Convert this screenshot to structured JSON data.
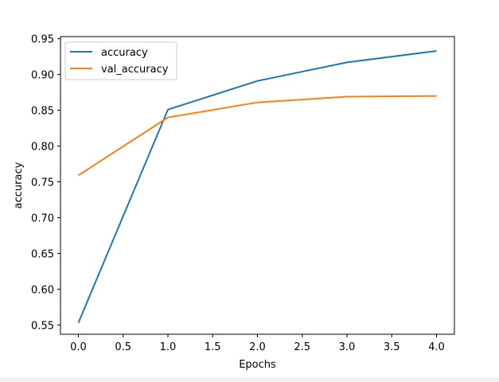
{
  "chart_data": {
    "type": "line",
    "xlabel": "Epochs",
    "ylabel": "accuracy",
    "xlim": [
      -0.2,
      4.2
    ],
    "ylim": [
      0.537,
      0.953
    ],
    "xticks": [
      "0.0",
      "0.5",
      "1.0",
      "1.5",
      "2.0",
      "2.5",
      "3.0",
      "3.5",
      "4.0"
    ],
    "yticks": [
      "0.55",
      "0.60",
      "0.65",
      "0.70",
      "0.75",
      "0.80",
      "0.85",
      "0.90",
      "0.95"
    ],
    "x": [
      0,
      1,
      2,
      3,
      4
    ],
    "series": [
      {
        "name": "accuracy",
        "color": "#1f77b4",
        "values": [
          0.553,
          0.851,
          0.891,
          0.917,
          0.933
        ]
      },
      {
        "name": "val_accuracy",
        "color": "#ff7f0e",
        "values": [
          0.759,
          0.84,
          0.861,
          0.869,
          0.87
        ]
      }
    ],
    "legend": "top-left",
    "grid": false
  }
}
